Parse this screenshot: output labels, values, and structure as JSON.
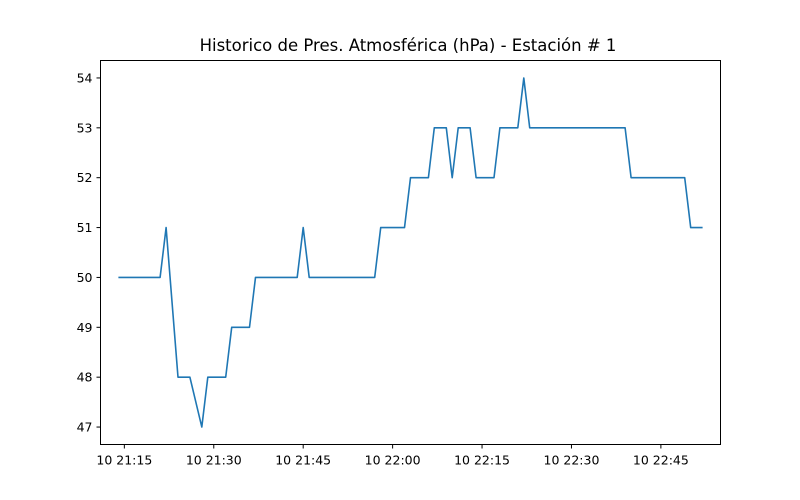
{
  "chart_data": {
    "type": "line",
    "title": "Historico de Pres. Atmosférica (hPa) - Estación # 1",
    "xlabel": "",
    "ylabel": "",
    "x_tick_labels": [
      "10 21:15",
      "10 21:30",
      "10 21:45",
      "10 22:00",
      "10 22:15",
      "10 22:30",
      "10 22:45"
    ],
    "x_tick_times": [
      "21:15",
      "21:30",
      "21:45",
      "22:00",
      "22:15",
      "22:30",
      "22:45"
    ],
    "y_tick_labels": [
      "47",
      "48",
      "49",
      "50",
      "51",
      "52",
      "53",
      "54"
    ],
    "xlim": [
      "21:11",
      "22:55"
    ],
    "ylim": [
      46.65,
      54.35
    ],
    "grid": false,
    "color": "#1f77b4",
    "series": [
      {
        "x": [
          "21:14",
          "21:21",
          "21:22",
          "21:24",
          "21:26",
          "21:28",
          "21:29",
          "21:32",
          "21:33",
          "21:36",
          "21:37",
          "21:44",
          "21:45",
          "21:46",
          "21:57",
          "21:58",
          "22:02",
          "22:03",
          "22:06",
          "22:07",
          "22:09",
          "22:10",
          "22:11",
          "22:13",
          "22:14",
          "22:17",
          "22:18",
          "22:21",
          "22:22",
          "22:23",
          "22:39",
          "22:40",
          "22:49",
          "22:50",
          "22:51",
          "22:52"
        ],
        "values": [
          50,
          50,
          51,
          48,
          48,
          47,
          48,
          48,
          49,
          49,
          50,
          50,
          51,
          50,
          50,
          51,
          51,
          52,
          52,
          53,
          53,
          52,
          53,
          53,
          52,
          52,
          53,
          53,
          54,
          53,
          53,
          52,
          52,
          51,
          51,
          51
        ]
      }
    ]
  }
}
